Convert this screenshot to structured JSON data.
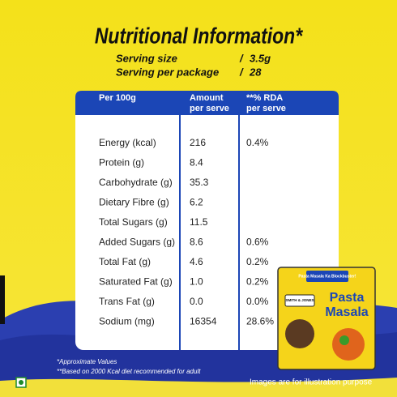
{
  "title": "Nutritional Information*",
  "serving": [
    {
      "label": "Serving size",
      "value": "3.5g"
    },
    {
      "label": "Serving per package",
      "value": "28"
    }
  ],
  "table": {
    "header": [
      [
        "Per 100g"
      ],
      [
        "Amount",
        "per serve"
      ],
      [
        "**% RDA",
        "per serve"
      ]
    ],
    "rows": [
      [
        "Energy (kcal)",
        "216",
        "0.4%"
      ],
      [
        "Protein (g)",
        "8.4"
      ],
      [
        "Carbohydrate (g)",
        "35.3"
      ],
      [
        "Dietary Fibre (g)",
        "6.2"
      ],
      [
        "Total Sugars (g)",
        "11.5"
      ],
      [
        "Added Sugars (g)",
        "8.6",
        "0.6%"
      ],
      [
        "Total Fat (g)",
        "4.6",
        "0.2%"
      ],
      [
        "Saturated Fat (g)",
        "1.0",
        "0.2%"
      ],
      [
        "Trans Fat (g)",
        "0.0",
        "0.0%"
      ],
      [
        "Sodium (mg)",
        "16354",
        "28.6%"
      ]
    ]
  },
  "footnotes": [
    "*Approximate Values",
    "**Based on 2000 Kcal diet recommended for adult"
  ],
  "disclaimer": "Images are for illustration purpose",
  "package": {
    "brand": "SMITH & JONES",
    "tagline": "Pasta Masala Ka Blockbuster!",
    "name": [
      "Pasta",
      "Masala"
    ]
  }
}
